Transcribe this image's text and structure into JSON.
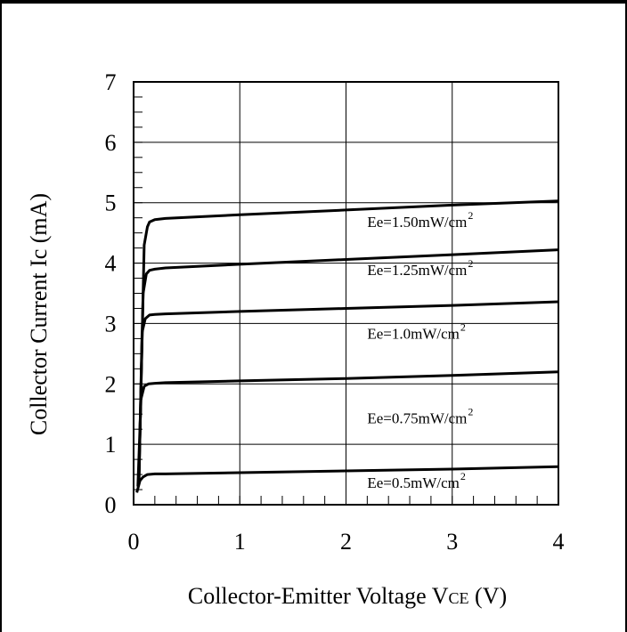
{
  "chart_data": {
    "type": "line",
    "title": "",
    "xlabel": "Collector-Emitter Voltage V",
    "xlabel_sub": "CE",
    "xlabel_unit": " (V)",
    "ylabel": "Collector Current Ic (mA)",
    "xlim": [
      0,
      4
    ],
    "ylim": [
      0,
      7
    ],
    "xticks": [
      "0",
      "1",
      "2",
      "3",
      "4"
    ],
    "yticks": [
      "0",
      "1",
      "2",
      "3",
      "4",
      "5",
      "6",
      "7"
    ],
    "grid": true,
    "series": [
      {
        "name": "Ee=1.50mW/cm",
        "sup": "2",
        "label_at": [
          2.2,
          4.6
        ],
        "x": [
          0.05,
          0.1,
          0.13,
          0.15,
          0.2,
          0.3,
          1.0,
          2.0,
          3.0,
          4.0
        ],
        "y": [
          0.4,
          4.3,
          4.6,
          4.68,
          4.72,
          4.74,
          4.8,
          4.88,
          4.96,
          5.03
        ]
      },
      {
        "name": "Ee=1.25mW/cm",
        "sup": "2",
        "label_at": [
          2.2,
          3.8
        ],
        "x": [
          0.05,
          0.09,
          0.12,
          0.15,
          0.2,
          0.3,
          1.0,
          2.0,
          3.0,
          4.0
        ],
        "y": [
          0.4,
          3.5,
          3.82,
          3.88,
          3.9,
          3.92,
          3.98,
          4.06,
          4.14,
          4.22
        ]
      },
      {
        "name": "Ee=1.0mW/cm",
        "sup": "2",
        "label_at": [
          2.2,
          2.75
        ],
        "x": [
          0.05,
          0.08,
          0.11,
          0.15,
          0.2,
          0.3,
          1.0,
          2.0,
          3.0,
          4.0
        ],
        "y": [
          0.4,
          2.85,
          3.08,
          3.14,
          3.15,
          3.16,
          3.2,
          3.25,
          3.3,
          3.36
        ]
      },
      {
        "name": "Ee=0.75mW/cm",
        "sup": "2",
        "label_at": [
          2.2,
          1.35
        ],
        "x": [
          0.04,
          0.07,
          0.1,
          0.14,
          0.2,
          0.3,
          1.0,
          2.0,
          3.0,
          4.0
        ],
        "y": [
          0.3,
          1.75,
          1.96,
          2.0,
          2.01,
          2.02,
          2.05,
          2.09,
          2.14,
          2.2
        ]
      },
      {
        "name": "Ee=0.5mW/cm",
        "sup": "2",
        "label_at": [
          2.2,
          0.28
        ],
        "x": [
          0.03,
          0.06,
          0.09,
          0.13,
          0.2,
          0.3,
          1.0,
          2.0,
          3.0,
          4.0
        ],
        "y": [
          0.2,
          0.4,
          0.46,
          0.5,
          0.51,
          0.51,
          0.53,
          0.56,
          0.59,
          0.63
        ]
      }
    ],
    "colors": {
      "line": "#000000",
      "grid": "#000000",
      "background": "#ffffff"
    }
  }
}
